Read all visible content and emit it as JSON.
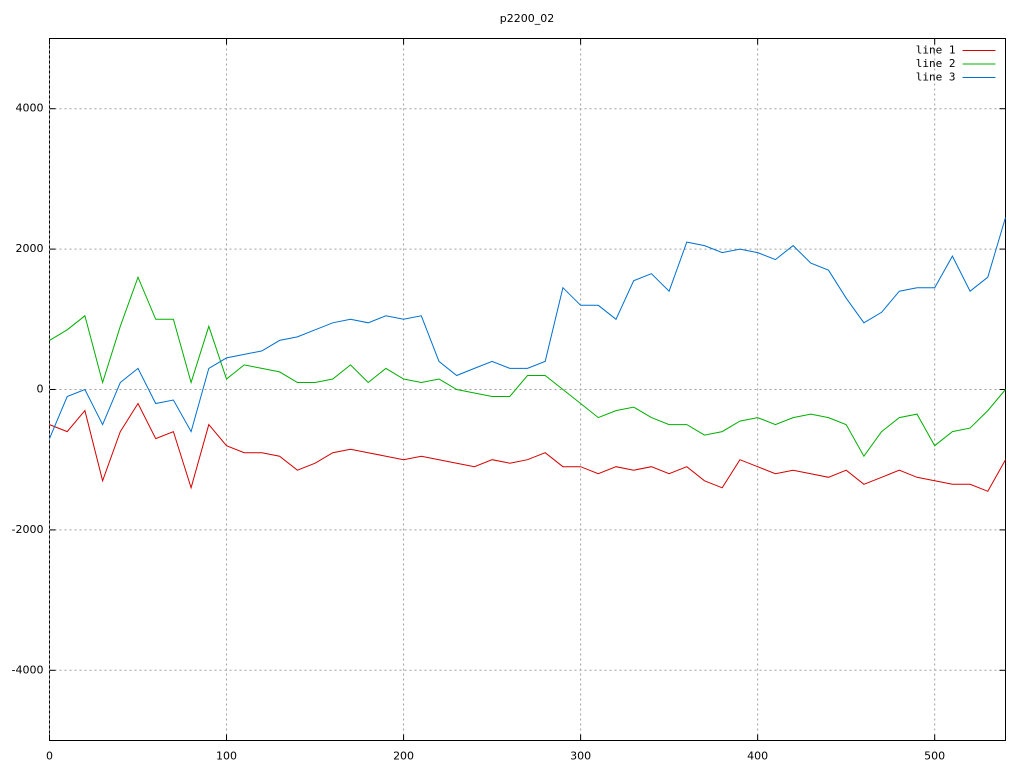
{
  "chart_data": {
    "type": "line",
    "title": "p2200_02",
    "x": [
      0,
      10,
      20,
      30,
      40,
      50,
      60,
      70,
      80,
      90,
      100,
      110,
      120,
      130,
      140,
      150,
      160,
      170,
      180,
      190,
      200,
      210,
      220,
      230,
      240,
      250,
      260,
      270,
      280,
      290,
      300,
      310,
      320,
      330,
      340,
      350,
      360,
      370,
      380,
      390,
      400,
      410,
      420,
      430,
      440,
      450,
      460,
      470,
      480,
      490,
      500,
      510,
      520,
      530,
      540
    ],
    "series": [
      {
        "name": "line 1",
        "color": "#d40000",
        "values": [
          -500,
          -600,
          -300,
          -1300,
          -600,
          -200,
          -700,
          -600,
          -1400,
          -500,
          -800,
          -900,
          -900,
          -950,
          -1150,
          -1050,
          -900,
          -850,
          -900,
          -950,
          -1000,
          -950,
          -1000,
          -1050,
          -1100,
          -1000,
          -1050,
          -1000,
          -900,
          -1100,
          -1100,
          -1200,
          -1100,
          -1150,
          -1100,
          -1200,
          -1100,
          -1300,
          -1400,
          -1000,
          -1100,
          -1200,
          -1150,
          -1200,
          -1250,
          -1150,
          -1350,
          -1250,
          -1150,
          -1250,
          -1300,
          -1350,
          -1350,
          -1450,
          -1000
        ]
      },
      {
        "name": "line 2",
        "color": "#00b000",
        "values": [
          700,
          850,
          1050,
          100,
          900,
          1600,
          1000,
          1000,
          100,
          900,
          150,
          350,
          300,
          250,
          100,
          100,
          150,
          350,
          100,
          300,
          150,
          100,
          150,
          0,
          -50,
          -100,
          -100,
          200,
          200,
          0,
          -200,
          -400,
          -300,
          -250,
          -400,
          -500,
          -500,
          -650,
          -600,
          -450,
          -400,
          -500,
          -400,
          -350,
          -400,
          -500,
          -950,
          -600,
          -400,
          -350,
          -800,
          -600,
          -550,
          -300,
          0
        ]
      },
      {
        "name": "line 3",
        "color": "#0070d0",
        "values": [
          -700,
          -100,
          0,
          -500,
          100,
          300,
          -200,
          -150,
          -600,
          300,
          450,
          500,
          550,
          700,
          750,
          850,
          950,
          1000,
          950,
          1050,
          1000,
          1050,
          400,
          200,
          300,
          400,
          300,
          300,
          400,
          1450,
          1200,
          1200,
          1000,
          1550,
          1650,
          1400,
          2100,
          2050,
          1950,
          2000,
          1950,
          1850,
          2050,
          1800,
          1700,
          1300,
          950,
          1100,
          1400,
          1450,
          1450,
          1900,
          1400,
          1600,
          2450
        ]
      }
    ],
    "xlim": [
      0,
      540
    ],
    "xticks": [
      0,
      100,
      200,
      300,
      400,
      500
    ],
    "ylim": [
      -5000,
      5000
    ],
    "yticks": [
      -4000,
      -2000,
      0,
      2000,
      4000
    ],
    "grid": true,
    "legend": "top-right"
  }
}
